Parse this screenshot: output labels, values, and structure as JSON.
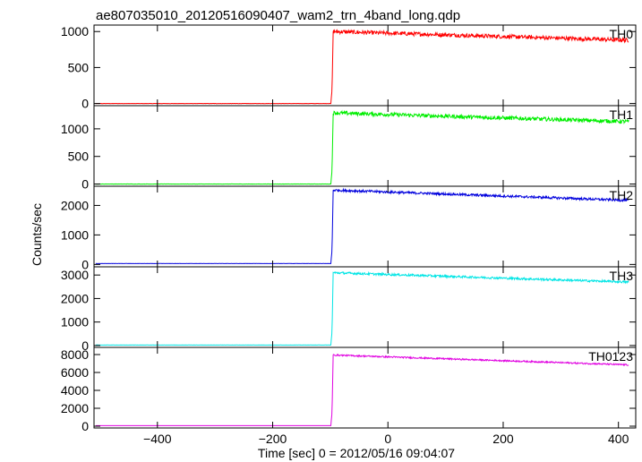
{
  "title": "ae807035010_20120516090407_wam2_trn_4band_long.qdp",
  "xlabel": "Time [sec] 0 = 2012/05/16 09:04:07",
  "ylabel": "Counts/sec",
  "chart_data": {
    "type": "line",
    "x_range": [
      -510,
      430
    ],
    "x_ticks": [
      -400,
      -200,
      0,
      200,
      400
    ],
    "x_tick_labels": [
      "−400",
      "−200",
      "0",
      "200",
      "400"
    ],
    "grid": false,
    "panels": [
      {
        "label": "TH0",
        "color": "#ff0000",
        "ylim": [
          -30,
          1090
        ],
        "yticks": [
          0,
          500,
          1000
        ],
        "pre_level": 0,
        "post_start": 1000,
        "post_end": 880,
        "noise": 28,
        "onset_x": -97
      },
      {
        "label": "TH1",
        "color": "#00ee00",
        "ylim": [
          -40,
          1420
        ],
        "yticks": [
          0,
          500,
          1000
        ],
        "pre_level": 0,
        "post_start": 1290,
        "post_end": 1130,
        "noise": 35,
        "onset_x": -97
      },
      {
        "label": "TH2",
        "color": "#0000dd",
        "ylim": [
          -80,
          2650
        ],
        "yticks": [
          0,
          1000,
          2000
        ],
        "pre_level": 30,
        "post_start": 2520,
        "post_end": 2170,
        "noise": 40,
        "onset_x": -97
      },
      {
        "label": "TH3",
        "color": "#00e5e5",
        "ylim": [
          -80,
          3350
        ],
        "yticks": [
          0,
          1000,
          2000,
          3000
        ],
        "pre_level": 20,
        "post_start": 3100,
        "post_end": 2700,
        "noise": 45,
        "onset_x": -97
      },
      {
        "label": "TH0123",
        "color": "#e000e0",
        "ylim": [
          -200,
          8800
        ],
        "yticks": [
          0,
          2000,
          4000,
          6000,
          8000
        ],
        "pre_level": 60,
        "post_start": 7950,
        "post_end": 6850,
        "noise": 80,
        "onset_x": -97
      }
    ]
  }
}
